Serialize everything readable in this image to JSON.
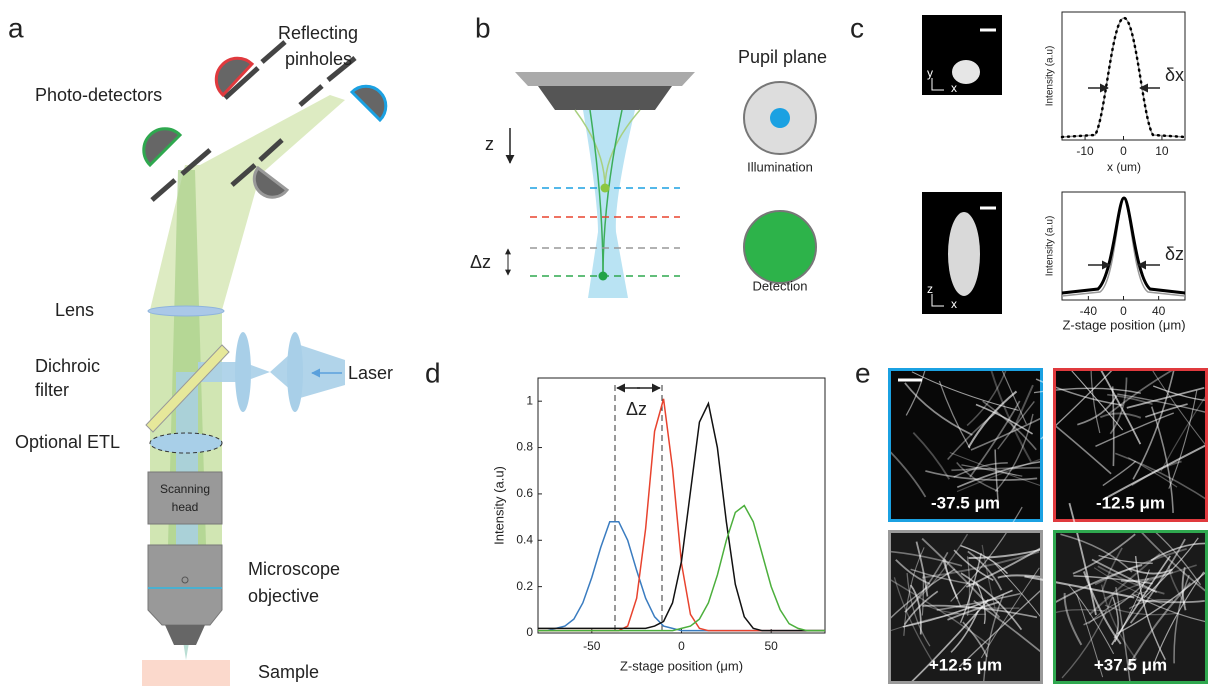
{
  "panel_a": {
    "label": "a",
    "reflecting_pinholes": [
      "Reflecting",
      "pinholes"
    ],
    "photo_detectors": "Photo-detectors",
    "lens": "Lens",
    "dichroic_filter": [
      "Dichroic",
      "filter"
    ],
    "laser": "Laser",
    "optional_etl": "Optional ETL",
    "scanning_head": [
      "Scanning",
      "head"
    ],
    "microscope_objective": [
      "Microscope",
      "objective"
    ],
    "sample": "Sample"
  },
  "panel_b": {
    "label": "b",
    "z": "z",
    "delta_z": "Δz",
    "pupil_plane": "Pupil plane",
    "illumination": "Illumination",
    "detection": "Detection"
  },
  "panel_c": {
    "label": "c",
    "top": {
      "image_axes": [
        "y",
        "x"
      ],
      "ylabel": "Intensity (a.u)",
      "xlabel": "x (um)",
      "xlim": [
        -16,
        16
      ],
      "xticks": [
        -10,
        0,
        10
      ],
      "annotation": "δx"
    },
    "bottom": {
      "image_axes": [
        "z",
        "x"
      ],
      "ylabel": "Intensity (a.u)",
      "xlabel": "Z-stage position (μm)",
      "xlim": [
        -70,
        70
      ],
      "xticks": [
        -40,
        0,
        40
      ],
      "annotation": "δz"
    }
  },
  "panel_d": {
    "label": "d"
  },
  "chart_data": {
    "type": "line",
    "xlabel": "Z-stage position (μm)",
    "ylabel": "Intensity (a.u)",
    "annotation": "Δz",
    "x": [
      -80,
      -75,
      -70,
      -65,
      -60,
      -55,
      -50,
      -45,
      -40,
      -35,
      -30,
      -25,
      -20,
      -15,
      -10,
      -5,
      0,
      5,
      10,
      15,
      20,
      25,
      30,
      35,
      40,
      45,
      50,
      55,
      60,
      65,
      70,
      75,
      80
    ],
    "series": [
      {
        "color": "#3a7cc0",
        "values": [
          0.01,
          0.01,
          0.02,
          0.03,
          0.06,
          0.13,
          0.24,
          0.37,
          0.48,
          0.48,
          0.4,
          0.27,
          0.15,
          0.07,
          0.03,
          0.02,
          0.01,
          0.01,
          0.01,
          0.01,
          0.01,
          0.01,
          0.01,
          0.01,
          0.01,
          0.01,
          0.01,
          0.01,
          0.01,
          0.01,
          0.01,
          0.01,
          0.01
        ]
      },
      {
        "color": "#e8432e",
        "values": [
          0.01,
          0.01,
          0.01,
          0.01,
          0.01,
          0.01,
          0.01,
          0.01,
          0.01,
          0.01,
          0.03,
          0.15,
          0.45,
          0.87,
          1.01,
          0.71,
          0.3,
          0.08,
          0.02,
          0.01,
          0.01,
          0.01,
          0.01,
          0.01,
          0.01,
          0.01,
          0.01,
          0.01,
          0.01,
          0.01,
          0.01,
          0.01,
          0.01
        ]
      },
      {
        "color": "#111111",
        "values": [
          0.02,
          0.02,
          0.02,
          0.02,
          0.02,
          0.02,
          0.02,
          0.02,
          0.02,
          0.02,
          0.02,
          0.02,
          0.02,
          0.03,
          0.05,
          0.13,
          0.31,
          0.61,
          0.91,
          0.99,
          0.8,
          0.48,
          0.21,
          0.07,
          0.02,
          0.01,
          0.01,
          0.01,
          0.01,
          0.01,
          0.01,
          0.01,
          0.01
        ]
      },
      {
        "color": "#4caf3c",
        "values": [
          0.01,
          0.01,
          0.01,
          0.01,
          0.01,
          0.01,
          0.01,
          0.01,
          0.01,
          0.01,
          0.01,
          0.01,
          0.01,
          0.01,
          0.01,
          0.01,
          0.02,
          0.03,
          0.06,
          0.13,
          0.25,
          0.4,
          0.52,
          0.55,
          0.48,
          0.34,
          0.2,
          0.1,
          0.04,
          0.02,
          0.01,
          0.01,
          0.01
        ]
      }
    ],
    "xlim": [
      -80,
      80
    ],
    "ylim": [
      0,
      1.1
    ],
    "xticks": [
      -50,
      0,
      50
    ],
    "yticks": [
      0,
      0.2,
      0.4,
      0.6,
      0.8,
      1
    ]
  },
  "panel_e": {
    "label": "e",
    "images": [
      {
        "label": "-37.5 μm",
        "color": "#1ba1e2"
      },
      {
        "label": "-12.5 μm",
        "color": "#e03a3e"
      },
      {
        "label": "+12.5 μm",
        "color": "#999999"
      },
      {
        "label": "+37.5 μm",
        "color": "#2fa84f"
      }
    ]
  }
}
